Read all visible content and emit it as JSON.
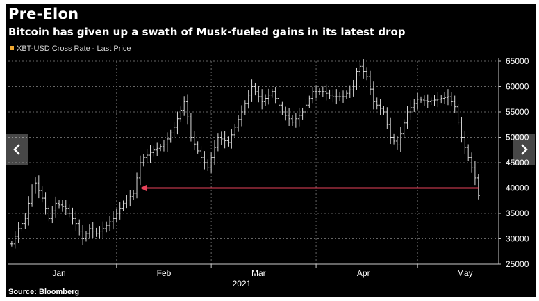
{
  "page": {
    "title": "Pre-Elon",
    "subtitle": "Bitcoin has given up a swath of Musk-fueled gains in its latest drop",
    "source": "Source: Bloomberg",
    "nav": {
      "prev_icon": "chevron-left-icon",
      "next_icon": "chevron-right-icon"
    }
  },
  "colors": {
    "background": "#000000",
    "bars": "#d9d9d9",
    "arrow": "#e8425a",
    "legend_swatch": "#f0a830",
    "grid": "#666666"
  },
  "chart_data": {
    "type": "line",
    "title": "Pre-Elon",
    "subtitle": "Bitcoin has given up a swath of Musk-fueled gains in its latest drop",
    "series": [
      {
        "name": "XBT-USD Cross Rate - Last Price",
        "style": "ohlc-bars"
      }
    ],
    "x": [
      "2021-01-01",
      "2021-01-03",
      "2021-01-05",
      "2021-01-07",
      "2021-01-08",
      "2021-01-10",
      "2021-01-12",
      "2021-01-14",
      "2021-01-17",
      "2021-01-20",
      "2021-01-22",
      "2021-01-24",
      "2021-01-26",
      "2021-01-28",
      "2021-01-31",
      "2021-02-03",
      "2021-02-06",
      "2021-02-08",
      "2021-02-09",
      "2021-02-12",
      "2021-02-15",
      "2021-02-18",
      "2021-02-21",
      "2021-02-22",
      "2021-02-23",
      "2021-02-26",
      "2021-02-28",
      "2021-03-03",
      "2021-03-06",
      "2021-03-10",
      "2021-03-13",
      "2021-03-14",
      "2021-03-16",
      "2021-03-19",
      "2021-03-22",
      "2021-03-25",
      "2021-03-28",
      "2021-03-31",
      "2021-04-03",
      "2021-04-06",
      "2021-04-09",
      "2021-04-12",
      "2021-04-13",
      "2021-04-14",
      "2021-04-16",
      "2021-04-18",
      "2021-04-21",
      "2021-04-23",
      "2021-04-25",
      "2021-04-28",
      "2021-05-01",
      "2021-05-04",
      "2021-05-07",
      "2021-05-10",
      "2021-05-12",
      "2021-05-14",
      "2021-05-16",
      "2021-05-18",
      "2021-05-19"
    ],
    "values": [
      29000,
      32000,
      34000,
      40000,
      41000,
      38000,
      34000,
      37000,
      36000,
      33000,
      30000,
      32000,
      31000,
      32000,
      34000,
      37000,
      39000,
      45000,
      46000,
      47500,
      48500,
      52000,
      57000,
      54000,
      50000,
      46000,
      44000,
      50000,
      49000,
      55000,
      60000,
      59000,
      57000,
      59000,
      55000,
      53000,
      55000,
      59000,
      59000,
      58000,
      58000,
      60000,
      63000,
      64000,
      62000,
      57000,
      55000,
      50000,
      48500,
      55000,
      57500,
      57000,
      57500,
      58000,
      56000,
      50000,
      46000,
      42000,
      38500
    ],
    "ylim": [
      25000,
      65000
    ],
    "yticks": [
      "25000",
      "30000",
      "35000",
      "40000",
      "45000",
      "50000",
      "55000",
      "60000",
      "65000"
    ],
    "xticks": [
      "Jan",
      "Feb",
      "Mar",
      "Apr",
      "May"
    ],
    "xtick_dates": [
      "2021-01-15",
      "2021-02-15",
      "2021-03-15",
      "2021-04-15",
      "2021-05-15"
    ],
    "xaxis_year": "2021",
    "xlim": [
      "2020-12-31",
      "2021-05-25"
    ],
    "grid": true,
    "legend": "top-left",
    "annotation": {
      "type": "arrow",
      "from_date": "2021-05-19",
      "to_date": "2021-02-08",
      "value": 40000
    }
  }
}
